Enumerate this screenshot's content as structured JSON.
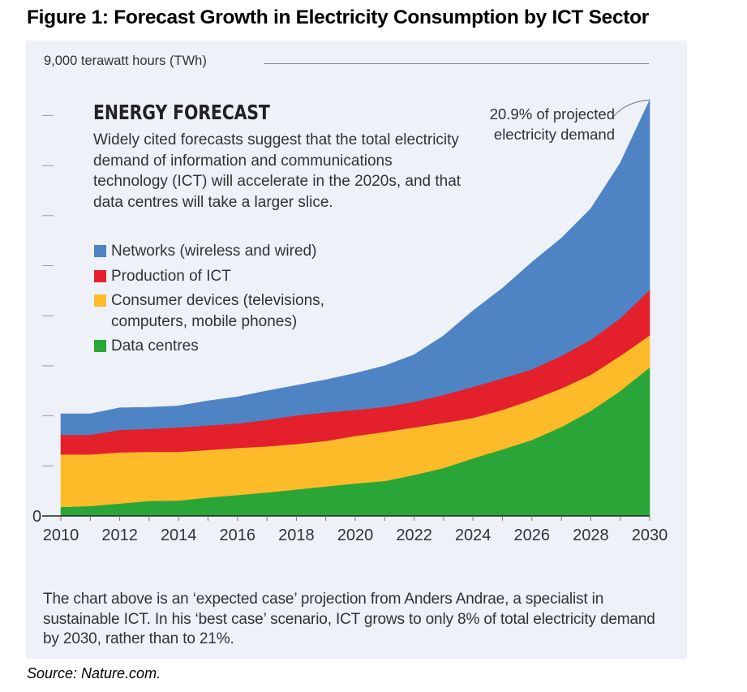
{
  "figure_title": "Figure 1: Forecast Growth in Electricity Consumption by ICT Sector",
  "source": "Source: Nature.com.",
  "chart_data": {
    "type": "area",
    "stacked": true,
    "title": "ENERGY FORECAST",
    "subtitle": "Widely cited forecasts suggest that the total electricity demand of information and communications technology (ICT) will accelerate in the 2020s, and that data centres will take a larger slice.",
    "ylabel": "9,000 terawatt hours (TWh)",
    "xlabel": "",
    "ylim": [
      0,
      9000
    ],
    "xlim": [
      2010,
      2030
    ],
    "y_ticks": [
      0,
      1000,
      2000,
      3000,
      4000,
      5000,
      6000,
      7000,
      8000,
      9000
    ],
    "y_tick_labels_shown": {
      "0": "0",
      "9000": "9,000"
    },
    "x": [
      2010,
      2011,
      2012,
      2013,
      2014,
      2015,
      2016,
      2017,
      2018,
      2019,
      2020,
      2021,
      2022,
      2023,
      2024,
      2025,
      2026,
      2027,
      2028,
      2029,
      2030
    ],
    "x_tick_labels": [
      "2010",
      "2012",
      "2014",
      "2016",
      "2018",
      "2020",
      "2022",
      "2024",
      "2026",
      "2028",
      "2030"
    ],
    "grid": false,
    "legend_position": "top-left",
    "series": [
      {
        "name": "Data centres",
        "color": "#29a637",
        "values": [
          180,
          200,
          250,
          300,
          310,
          370,
          420,
          470,
          530,
          590,
          650,
          700,
          820,
          960,
          1150,
          1330,
          1520,
          1780,
          2100,
          2500,
          2970
        ]
      },
      {
        "name": "Consumer devices (televisions, computers, mobile phones)",
        "color": "#fdbb2a",
        "values": [
          1050,
          1030,
          1020,
          980,
          970,
          950,
          940,
          920,
          910,
          910,
          950,
          980,
          950,
          900,
          810,
          790,
          800,
          770,
          720,
          700,
          640
        ]
      },
      {
        "name": "Production of ICT",
        "color": "#e3202b",
        "values": [
          390,
          390,
          450,
          460,
          490,
          490,
          490,
          530,
          570,
          570,
          520,
          500,
          510,
          560,
          620,
          630,
          610,
          650,
          700,
          750,
          910
        ]
      },
      {
        "name": "Networks (wireless and wired)",
        "color": "#4f84c4",
        "values": [
          420,
          420,
          440,
          430,
          430,
          490,
          530,
          580,
          600,
          650,
          730,
          820,
          940,
          1180,
          1520,
          1800,
          2140,
          2350,
          2620,
          3100,
          3790
        ]
      }
    ],
    "legend_order": [
      {
        "label": "Networks (wireless and wired)",
        "color": "#4f84c4"
      },
      {
        "label": "Production of ICT",
        "color": "#e3202b"
      },
      {
        "label": "Consumer devices (televisions, computers, mobile phones)",
        "color": "#fdbb2a"
      },
      {
        "label": "Data centres",
        "color": "#29a637"
      }
    ],
    "annotations": [
      {
        "text": "20.9% of projected electricity demand",
        "x": 2030,
        "y": 8310
      }
    ],
    "footnote": "The chart above is an ‘expected case’ projection from Anders Andrae, a specialist in sustainable ICT. In his ‘best case’ scenario, ICT grows to only 8% of total electricity demand by 2030, rather than to 21%."
  }
}
